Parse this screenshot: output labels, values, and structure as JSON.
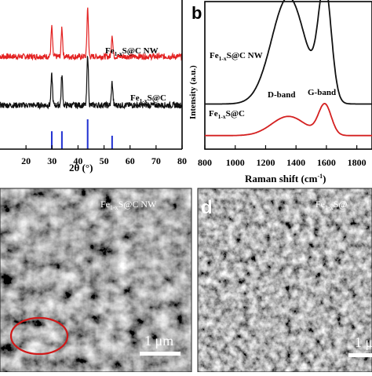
{
  "panels": {
    "a": {
      "xlabel_main": "2θ (°)",
      "xticks": [
        "20",
        "30",
        "40",
        "50",
        "60",
        "70",
        "80"
      ],
      "label_top": {
        "prefix": "Fe",
        "sub": "1-x",
        "suffix": "S@C NW"
      },
      "label_bottom": {
        "prefix": "Fe",
        "sub": "1-x",
        "suffix": "S@C"
      },
      "colors": {
        "top": "#e32222",
        "bottom": "#111111",
        "ref": "#1f2fd1"
      }
    },
    "b": {
      "panel_letter": "b",
      "ylabel": "Intensity (a.u.)",
      "xlabel": "Raman shift (cm",
      "xlabel_sup": "-1",
      "xlabel_end": ")",
      "xticks": [
        "800",
        "1000",
        "1200",
        "1400",
        "1600",
        "1800"
      ],
      "label_top": {
        "prefix": "Fe",
        "sub": "1-x",
        "suffix": "S@C NW"
      },
      "label_bottom": {
        "prefix": "Fe",
        "sub": "1-x",
        "suffix": "S@C"
      },
      "dband": "D-band",
      "gband": "G-band",
      "colors": {
        "top": "#111111",
        "bottom": "#d42020"
      }
    },
    "c": {
      "label": {
        "prefix": "Fe",
        "sub": "1-x",
        "suffix": "S@C NW"
      },
      "scale": "1 μm",
      "highlight_color": "#d01818"
    },
    "d": {
      "panel_letter": "d",
      "label": {
        "prefix": "Fe",
        "sub": "1-x",
        "suffix": "S@"
      },
      "scale": "1 μ"
    }
  },
  "chart_data": [
    {
      "type": "line",
      "xlabel": "2θ (°)",
      "xlim": [
        10,
        80
      ],
      "series": [
        {
          "name": "Fe1-xS@C NW",
          "x": [
            10,
            20,
            29.9,
            33.8,
            43.7,
            53.1,
            62,
            71,
            80
          ],
          "y": [
            0.78,
            0.76,
            0.98,
            0.96,
            1.0,
            0.86,
            0.77,
            0.76,
            0.76
          ]
        },
        {
          "name": "Fe1-xS@C",
          "x": [
            10,
            20,
            29.9,
            33.8,
            43.7,
            53.1,
            62,
            71,
            80
          ],
          "y": [
            0.42,
            0.4,
            0.66,
            0.64,
            0.7,
            0.52,
            0.4,
            0.39,
            0.39
          ]
        }
      ],
      "reference_peaks": [
        {
          "x": 29.9,
          "h": 0.6
        },
        {
          "x": 33.8,
          "h": 0.6
        },
        {
          "x": 43.7,
          "h": 1.0
        },
        {
          "x": 53.1,
          "h": 0.45
        }
      ]
    },
    {
      "type": "line",
      "ylabel": "Intensity (a.u.)",
      "xlabel": "Raman shift (cm-1)",
      "xlim": [
        800,
        1900
      ],
      "series": [
        {
          "name": "Fe1-xS@C NW",
          "d_center": 1350,
          "g_center": 1590,
          "d_height": 0.78,
          "g_height": 0.82,
          "baseline": 0.3
        },
        {
          "name": "Fe1-xS@C",
          "d_center": 1350,
          "g_center": 1590,
          "d_height": 0.14,
          "g_height": 0.22,
          "baseline": 0.07
        }
      ]
    }
  ]
}
